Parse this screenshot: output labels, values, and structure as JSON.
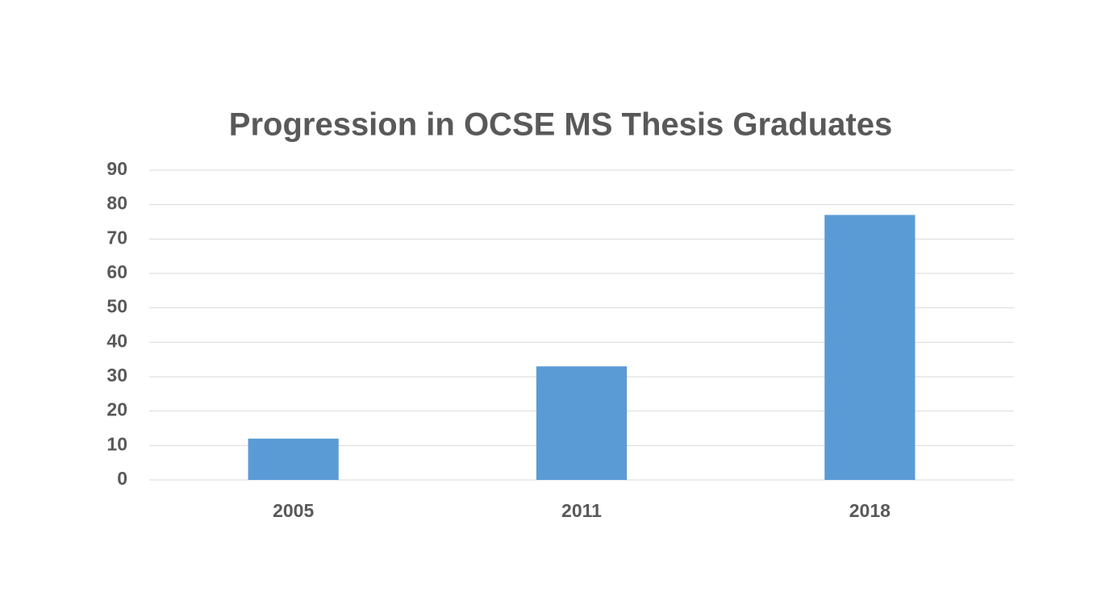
{
  "chart_data": {
    "type": "bar",
    "title": "Progression in OCSE MS Thesis Graduates",
    "categories": [
      "2005",
      "2011",
      "2018"
    ],
    "values": [
      12,
      33,
      77
    ],
    "color": "#5b9bd5",
    "ylim": [
      0,
      90
    ],
    "yticks": [
      0,
      10,
      20,
      30,
      40,
      50,
      60,
      70,
      80,
      90
    ],
    "grid": true
  }
}
